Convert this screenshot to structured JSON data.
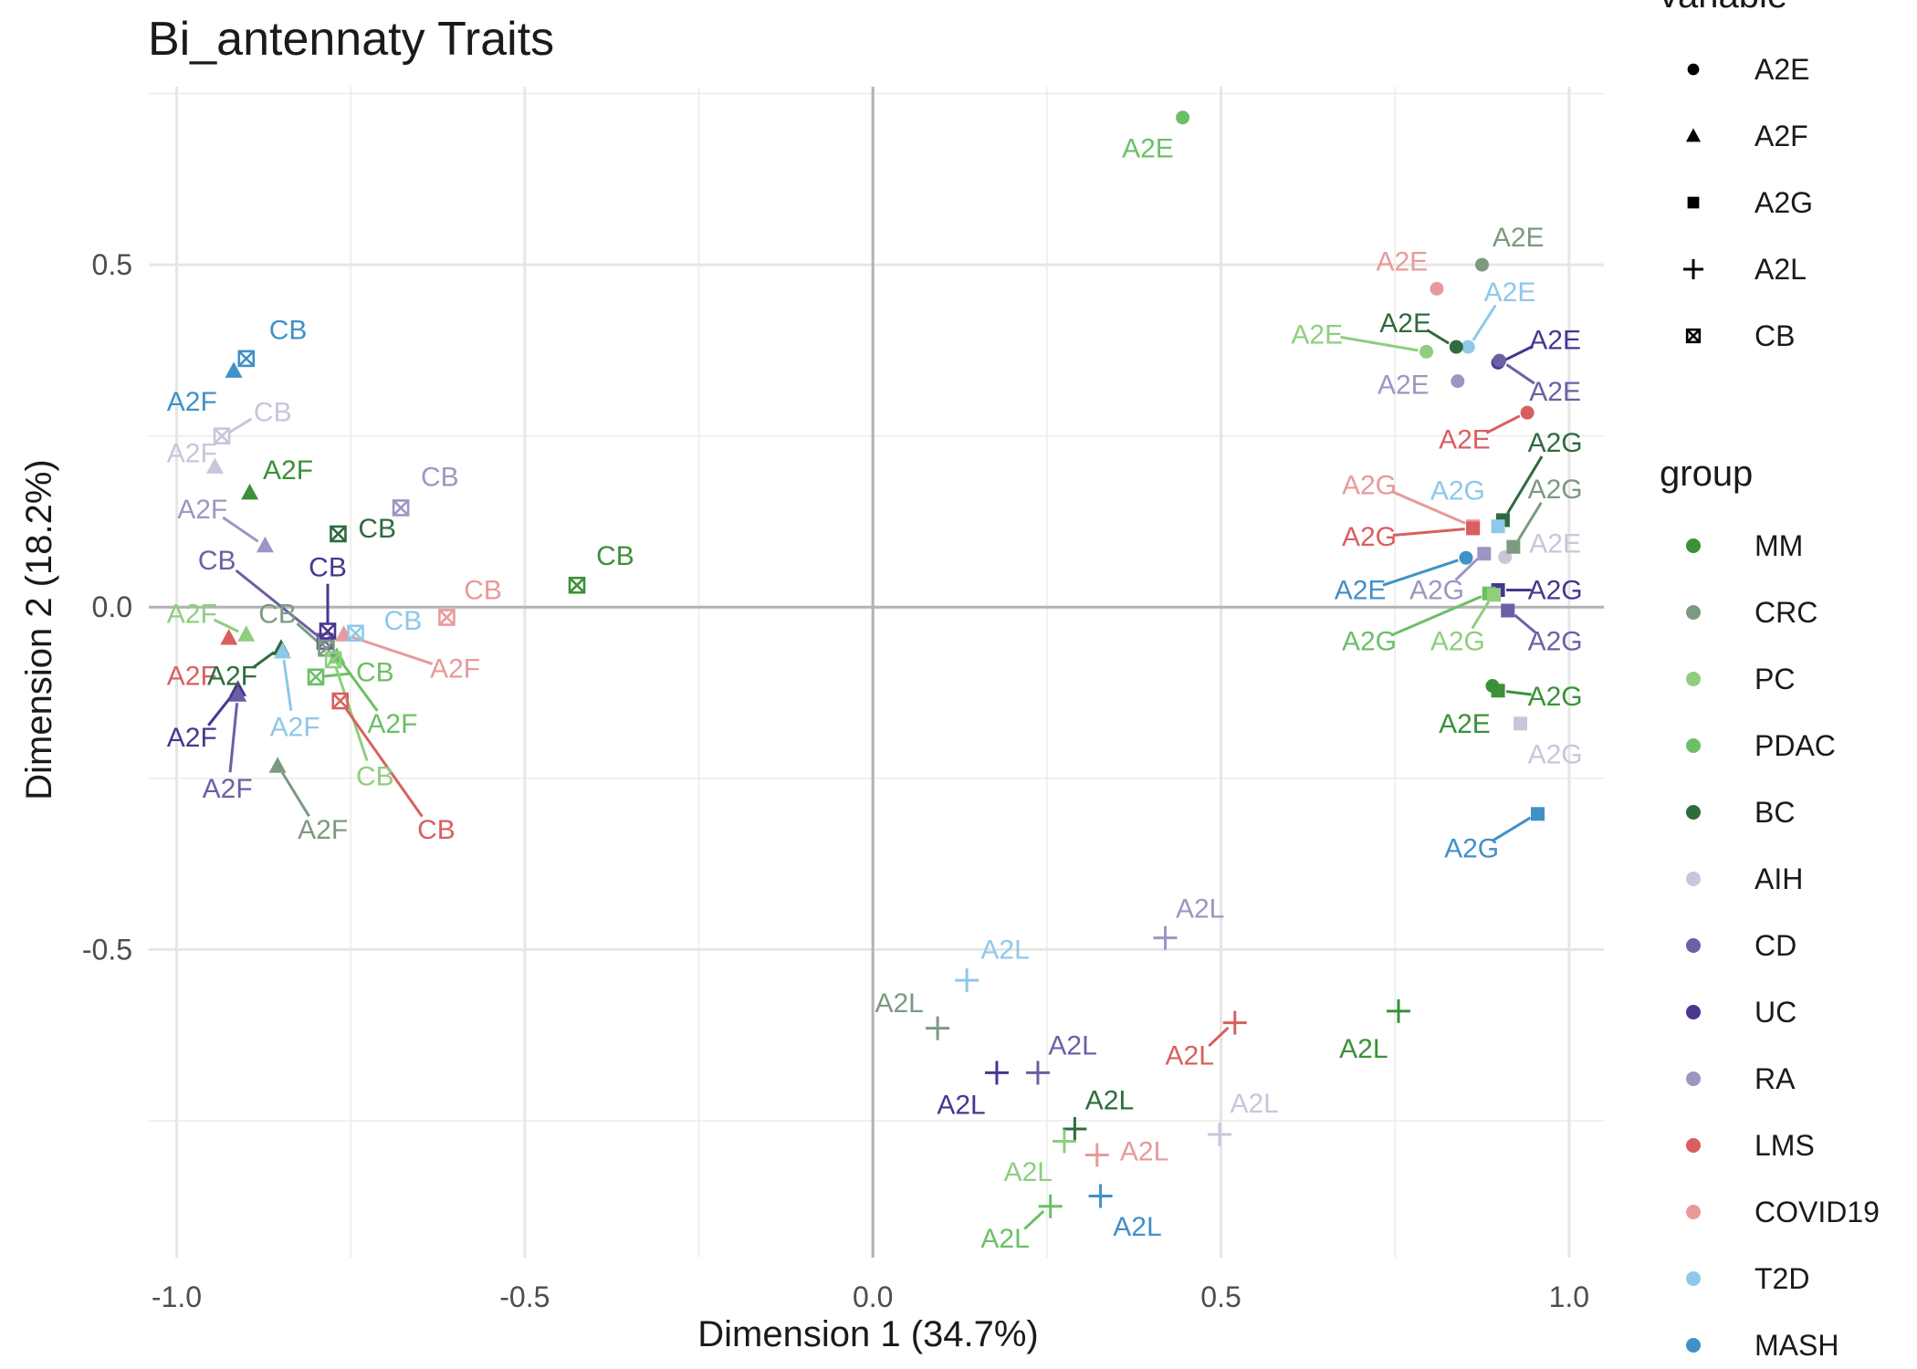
{
  "chart_data": {
    "type": "scatter",
    "title": "Bi_antennaty  Traits",
    "xlabel": "Dimension 1 (34.7%)",
    "ylabel": "Dimension 2 (18.2%)",
    "xlim": [
      -1.04,
      1.05
    ],
    "ylim": [
      -0.95,
      0.76
    ],
    "x_ticks": [
      -1.0,
      -0.5,
      0.0,
      0.5,
      1.0
    ],
    "x_tick_labels": [
      "-1.0",
      "-0.5",
      "0.0",
      "0.5",
      "1.0"
    ],
    "y_ticks": [
      -0.5,
      0.0,
      0.5
    ],
    "y_tick_labels": [
      "-0.5",
      "0.0",
      "0.5"
    ],
    "grid": true,
    "legend_position": "right",
    "legend_shape_title": "variable",
    "legend_shape_entries": [
      {
        "label": "A2E",
        "shape": "circle"
      },
      {
        "label": "A2F",
        "shape": "triangle"
      },
      {
        "label": "A2G",
        "shape": "square"
      },
      {
        "label": "A2L",
        "shape": "plus"
      },
      {
        "label": "CB",
        "shape": "boxx"
      }
    ],
    "legend_group_title": "group",
    "groups": [
      {
        "name": "MM",
        "color": "#3a9137"
      },
      {
        "name": "CRC",
        "color": "#7c9a80"
      },
      {
        "name": "PC",
        "color": "#8fce7f"
      },
      {
        "name": "PDAC",
        "color": "#6cbf67"
      },
      {
        "name": "BC",
        "color": "#2e6b3d"
      },
      {
        "name": "AIH",
        "color": "#c8c6dc"
      },
      {
        "name": "CD",
        "color": "#6c5fa5"
      },
      {
        "name": "UC",
        "color": "#4a3590"
      },
      {
        "name": "RA",
        "color": "#9d96c3"
      },
      {
        "name": "LMS",
        "color": "#d95f5f"
      },
      {
        "name": "COVID19",
        "color": "#e89a9a"
      },
      {
        "name": "T2D",
        "color": "#8fc8ea"
      },
      {
        "name": "MASH",
        "color": "#4190c8"
      }
    ],
    "points": [
      {
        "variable": "A2E",
        "group": "PDAC",
        "x": 0.445,
        "y": 0.715,
        "label_x": 0.395,
        "label_y": 0.67
      },
      {
        "variable": "A2E",
        "group": "CRC",
        "x": 0.875,
        "y": 0.5,
        "label_x": 0.927,
        "label_y": 0.54
      },
      {
        "variable": "A2E",
        "group": "COVID19",
        "x": 0.81,
        "y": 0.465,
        "label_x": 0.76,
        "label_y": 0.505
      },
      {
        "variable": "A2E",
        "group": "T2D",
        "x": 0.855,
        "y": 0.38,
        "label_x": 0.915,
        "label_y": 0.46
      },
      {
        "variable": "A2E",
        "group": "BC",
        "x": 0.838,
        "y": 0.38,
        "label_x": 0.765,
        "label_y": 0.415
      },
      {
        "variable": "A2E",
        "group": "PC",
        "x": 0.795,
        "y": 0.373,
        "label_x": 0.638,
        "label_y": 0.398
      },
      {
        "variable": "A2E",
        "group": "UC",
        "x": 0.898,
        "y": 0.357,
        "label_x": 0.98,
        "label_y": 0.39
      },
      {
        "variable": "A2E",
        "group": "RA",
        "x": 0.84,
        "y": 0.33,
        "label_x": 0.762,
        "label_y": 0.325
      },
      {
        "variable": "A2E",
        "group": "CD",
        "x": 0.9,
        "y": 0.36,
        "label_x": 0.98,
        "label_y": 0.315
      },
      {
        "variable": "A2E",
        "group": "LMS",
        "x": 0.94,
        "y": 0.284,
        "label_x": 0.85,
        "label_y": 0.245
      },
      {
        "variable": "A2E",
        "group": "AIH",
        "x": 0.908,
        "y": 0.073,
        "label_x": 0.98,
        "label_y": 0.093
      },
      {
        "variable": "A2E",
        "group": "MASH",
        "x": 0.852,
        "y": 0.072,
        "label_x": 0.7,
        "label_y": 0.025
      },
      {
        "variable": "A2E",
        "group": "MM",
        "x": 0.89,
        "y": -0.115,
        "label_x": 0.85,
        "label_y": -0.17
      },
      {
        "variable": "A2G",
        "group": "MM",
        "x": 0.898,
        "y": -0.122,
        "label_x": 0.98,
        "label_y": -0.13
      },
      {
        "variable": "A2G",
        "group": "BC",
        "x": 0.905,
        "y": 0.127,
        "label_x": 0.98,
        "label_y": 0.24
      },
      {
        "variable": "A2G",
        "group": "COVID19",
        "x": 0.862,
        "y": 0.118,
        "label_x": 0.713,
        "label_y": 0.178
      },
      {
        "variable": "A2G",
        "group": "T2D",
        "x": 0.898,
        "y": 0.118,
        "label_x": 0.84,
        "label_y": 0.17
      },
      {
        "variable": "A2G",
        "group": "CRC",
        "x": 0.92,
        "y": 0.088,
        "label_x": 0.98,
        "label_y": 0.172
      },
      {
        "variable": "A2G",
        "group": "LMS",
        "x": 0.862,
        "y": 0.115,
        "label_x": 0.713,
        "label_y": 0.103
      },
      {
        "variable": "A2G",
        "group": "RA",
        "x": 0.878,
        "y": 0.078,
        "label_x": 0.81,
        "label_y": 0.025
      },
      {
        "variable": "A2G",
        "group": "UC",
        "x": 0.898,
        "y": 0.025,
        "label_x": 0.98,
        "label_y": 0.025
      },
      {
        "variable": "A2G",
        "group": "CD",
        "x": 0.912,
        "y": -0.005,
        "label_x": 0.98,
        "label_y": -0.05
      },
      {
        "variable": "A2G",
        "group": "PDAC",
        "x": 0.885,
        "y": 0.02,
        "label_x": 0.713,
        "label_y": -0.05
      },
      {
        "variable": "A2G",
        "group": "PC",
        "x": 0.892,
        "y": 0.018,
        "label_x": 0.84,
        "label_y": -0.05
      },
      {
        "variable": "A2G",
        "group": "AIH",
        "x": 0.93,
        "y": -0.17,
        "label_x": 0.98,
        "label_y": -0.215
      },
      {
        "variable": "A2G",
        "group": "MASH",
        "x": 0.955,
        "y": -0.302,
        "label_x": 0.86,
        "label_y": -0.352
      },
      {
        "variable": "A2F",
        "group": "MASH",
        "x": -0.918,
        "y": 0.345,
        "label_x": -0.978,
        "label_y": 0.3
      },
      {
        "variable": "A2F",
        "group": "AIH",
        "x": -0.945,
        "y": 0.205,
        "label_x": -0.978,
        "label_y": 0.225
      },
      {
        "variable": "A2F",
        "group": "MM",
        "x": -0.895,
        "y": 0.167,
        "label_x": -0.84,
        "label_y": 0.2
      },
      {
        "variable": "A2F",
        "group": "RA",
        "x": -0.873,
        "y": 0.09,
        "label_x": -0.963,
        "label_y": 0.143
      },
      {
        "variable": "A2F",
        "group": "PC",
        "x": -0.9,
        "y": -0.04,
        "label_x": -0.978,
        "label_y": -0.01
      },
      {
        "variable": "A2F",
        "group": "LMS",
        "x": -0.925,
        "y": -0.045,
        "label_x": -0.978,
        "label_y": -0.1
      },
      {
        "variable": "A2F",
        "group": "BC",
        "x": -0.85,
        "y": -0.06,
        "label_x": -0.92,
        "label_y": -0.1
      },
      {
        "variable": "A2F",
        "group": "T2D",
        "x": -0.848,
        "y": -0.065,
        "label_x": -0.83,
        "label_y": -0.175
      },
      {
        "variable": "A2F",
        "group": "UC",
        "x": -0.912,
        "y": -0.12,
        "label_x": -0.978,
        "label_y": -0.19
      },
      {
        "variable": "A2F",
        "group": "CD",
        "x": -0.912,
        "y": -0.128,
        "label_x": -0.927,
        "label_y": -0.265
      },
      {
        "variable": "A2F",
        "group": "CRC",
        "x": -0.855,
        "y": -0.232,
        "label_x": -0.79,
        "label_y": -0.325
      },
      {
        "variable": "A2F",
        "group": "PDAC",
        "x": -0.77,
        "y": -0.072,
        "label_x": -0.69,
        "label_y": -0.17
      },
      {
        "variable": "A2F",
        "group": "COVID19",
        "x": -0.76,
        "y": -0.04,
        "label_x": -0.6,
        "label_y": -0.09
      },
      {
        "variable": "A2L",
        "group": "RA",
        "x": 0.42,
        "y": -0.483,
        "label_x": 0.47,
        "label_y": -0.44
      },
      {
        "variable": "A2L",
        "group": "T2D",
        "x": 0.135,
        "y": -0.545,
        "label_x": 0.19,
        "label_y": -0.5
      },
      {
        "variable": "A2L",
        "group": "CRC",
        "x": 0.093,
        "y": -0.615,
        "label_x": 0.038,
        "label_y": -0.578
      },
      {
        "variable": "A2L",
        "group": "MM",
        "x": 0.755,
        "y": -0.59,
        "label_x": 0.705,
        "label_y": -0.645
      },
      {
        "variable": "A2L",
        "group": "LMS",
        "x": 0.52,
        "y": -0.607,
        "label_x": 0.455,
        "label_y": -0.655
      },
      {
        "variable": "A2L",
        "group": "CD",
        "x": 0.237,
        "y": -0.68,
        "label_x": 0.287,
        "label_y": -0.64
      },
      {
        "variable": "A2L",
        "group": "UC",
        "x": 0.178,
        "y": -0.68,
        "label_x": 0.127,
        "label_y": -0.727
      },
      {
        "variable": "A2L",
        "group": "BC",
        "x": 0.29,
        "y": -0.762,
        "label_x": 0.34,
        "label_y": -0.72
      },
      {
        "variable": "A2L",
        "group": "AIH",
        "x": 0.498,
        "y": -0.77,
        "label_x": 0.548,
        "label_y": -0.725
      },
      {
        "variable": "A2L",
        "group": "PC",
        "x": 0.275,
        "y": -0.78,
        "label_x": 0.223,
        "label_y": -0.825
      },
      {
        "variable": "A2L",
        "group": "COVID19",
        "x": 0.322,
        "y": -0.8,
        "label_x": 0.39,
        "label_y": -0.795
      },
      {
        "variable": "A2L",
        "group": "MASH",
        "x": 0.327,
        "y": -0.86,
        "label_x": 0.38,
        "label_y": -0.905
      },
      {
        "variable": "A2L",
        "group": "PDAC",
        "x": 0.255,
        "y": -0.875,
        "label_x": 0.19,
        "label_y": -0.922
      },
      {
        "variable": "CB",
        "group": "MASH",
        "x": -0.9,
        "y": 0.363,
        "label_x": -0.84,
        "label_y": 0.405
      },
      {
        "variable": "CB",
        "group": "AIH",
        "x": -0.935,
        "y": 0.25,
        "label_x": -0.862,
        "label_y": 0.285
      },
      {
        "variable": "CB",
        "group": "RA",
        "x": -0.678,
        "y": 0.145,
        "label_x": -0.622,
        "label_y": 0.19
      },
      {
        "variable": "CB",
        "group": "BC",
        "x": -0.768,
        "y": 0.107,
        "label_x": -0.712,
        "label_y": 0.115
      },
      {
        "variable": "CB",
        "group": "MM",
        "x": -0.425,
        "y": 0.032,
        "label_x": -0.37,
        "label_y": 0.075
      },
      {
        "variable": "CB",
        "group": "COVID19",
        "x": -0.612,
        "y": -0.015,
        "label_x": -0.56,
        "label_y": 0.025
      },
      {
        "variable": "CB",
        "group": "CD",
        "x": -0.787,
        "y": -0.05,
        "label_x": -0.942,
        "label_y": 0.068
      },
      {
        "variable": "CB",
        "group": "UC",
        "x": -0.783,
        "y": -0.035,
        "label_x": -0.783,
        "label_y": 0.058
      },
      {
        "variable": "CB",
        "group": "CRC",
        "x": -0.785,
        "y": -0.06,
        "label_x": -0.855,
        "label_y": -0.01
      },
      {
        "variable": "CB",
        "group": "T2D",
        "x": -0.743,
        "y": -0.038,
        "label_x": -0.675,
        "label_y": -0.02
      },
      {
        "variable": "CB",
        "group": "PDAC",
        "x": -0.8,
        "y": -0.102,
        "label_x": -0.715,
        "label_y": -0.095
      },
      {
        "variable": "CB",
        "group": "PC",
        "x": -0.775,
        "y": -0.077,
        "label_x": -0.715,
        "label_y": -0.247
      },
      {
        "variable": "CB",
        "group": "LMS",
        "x": -0.765,
        "y": -0.137,
        "label_x": -0.627,
        "label_y": -0.325
      }
    ]
  }
}
